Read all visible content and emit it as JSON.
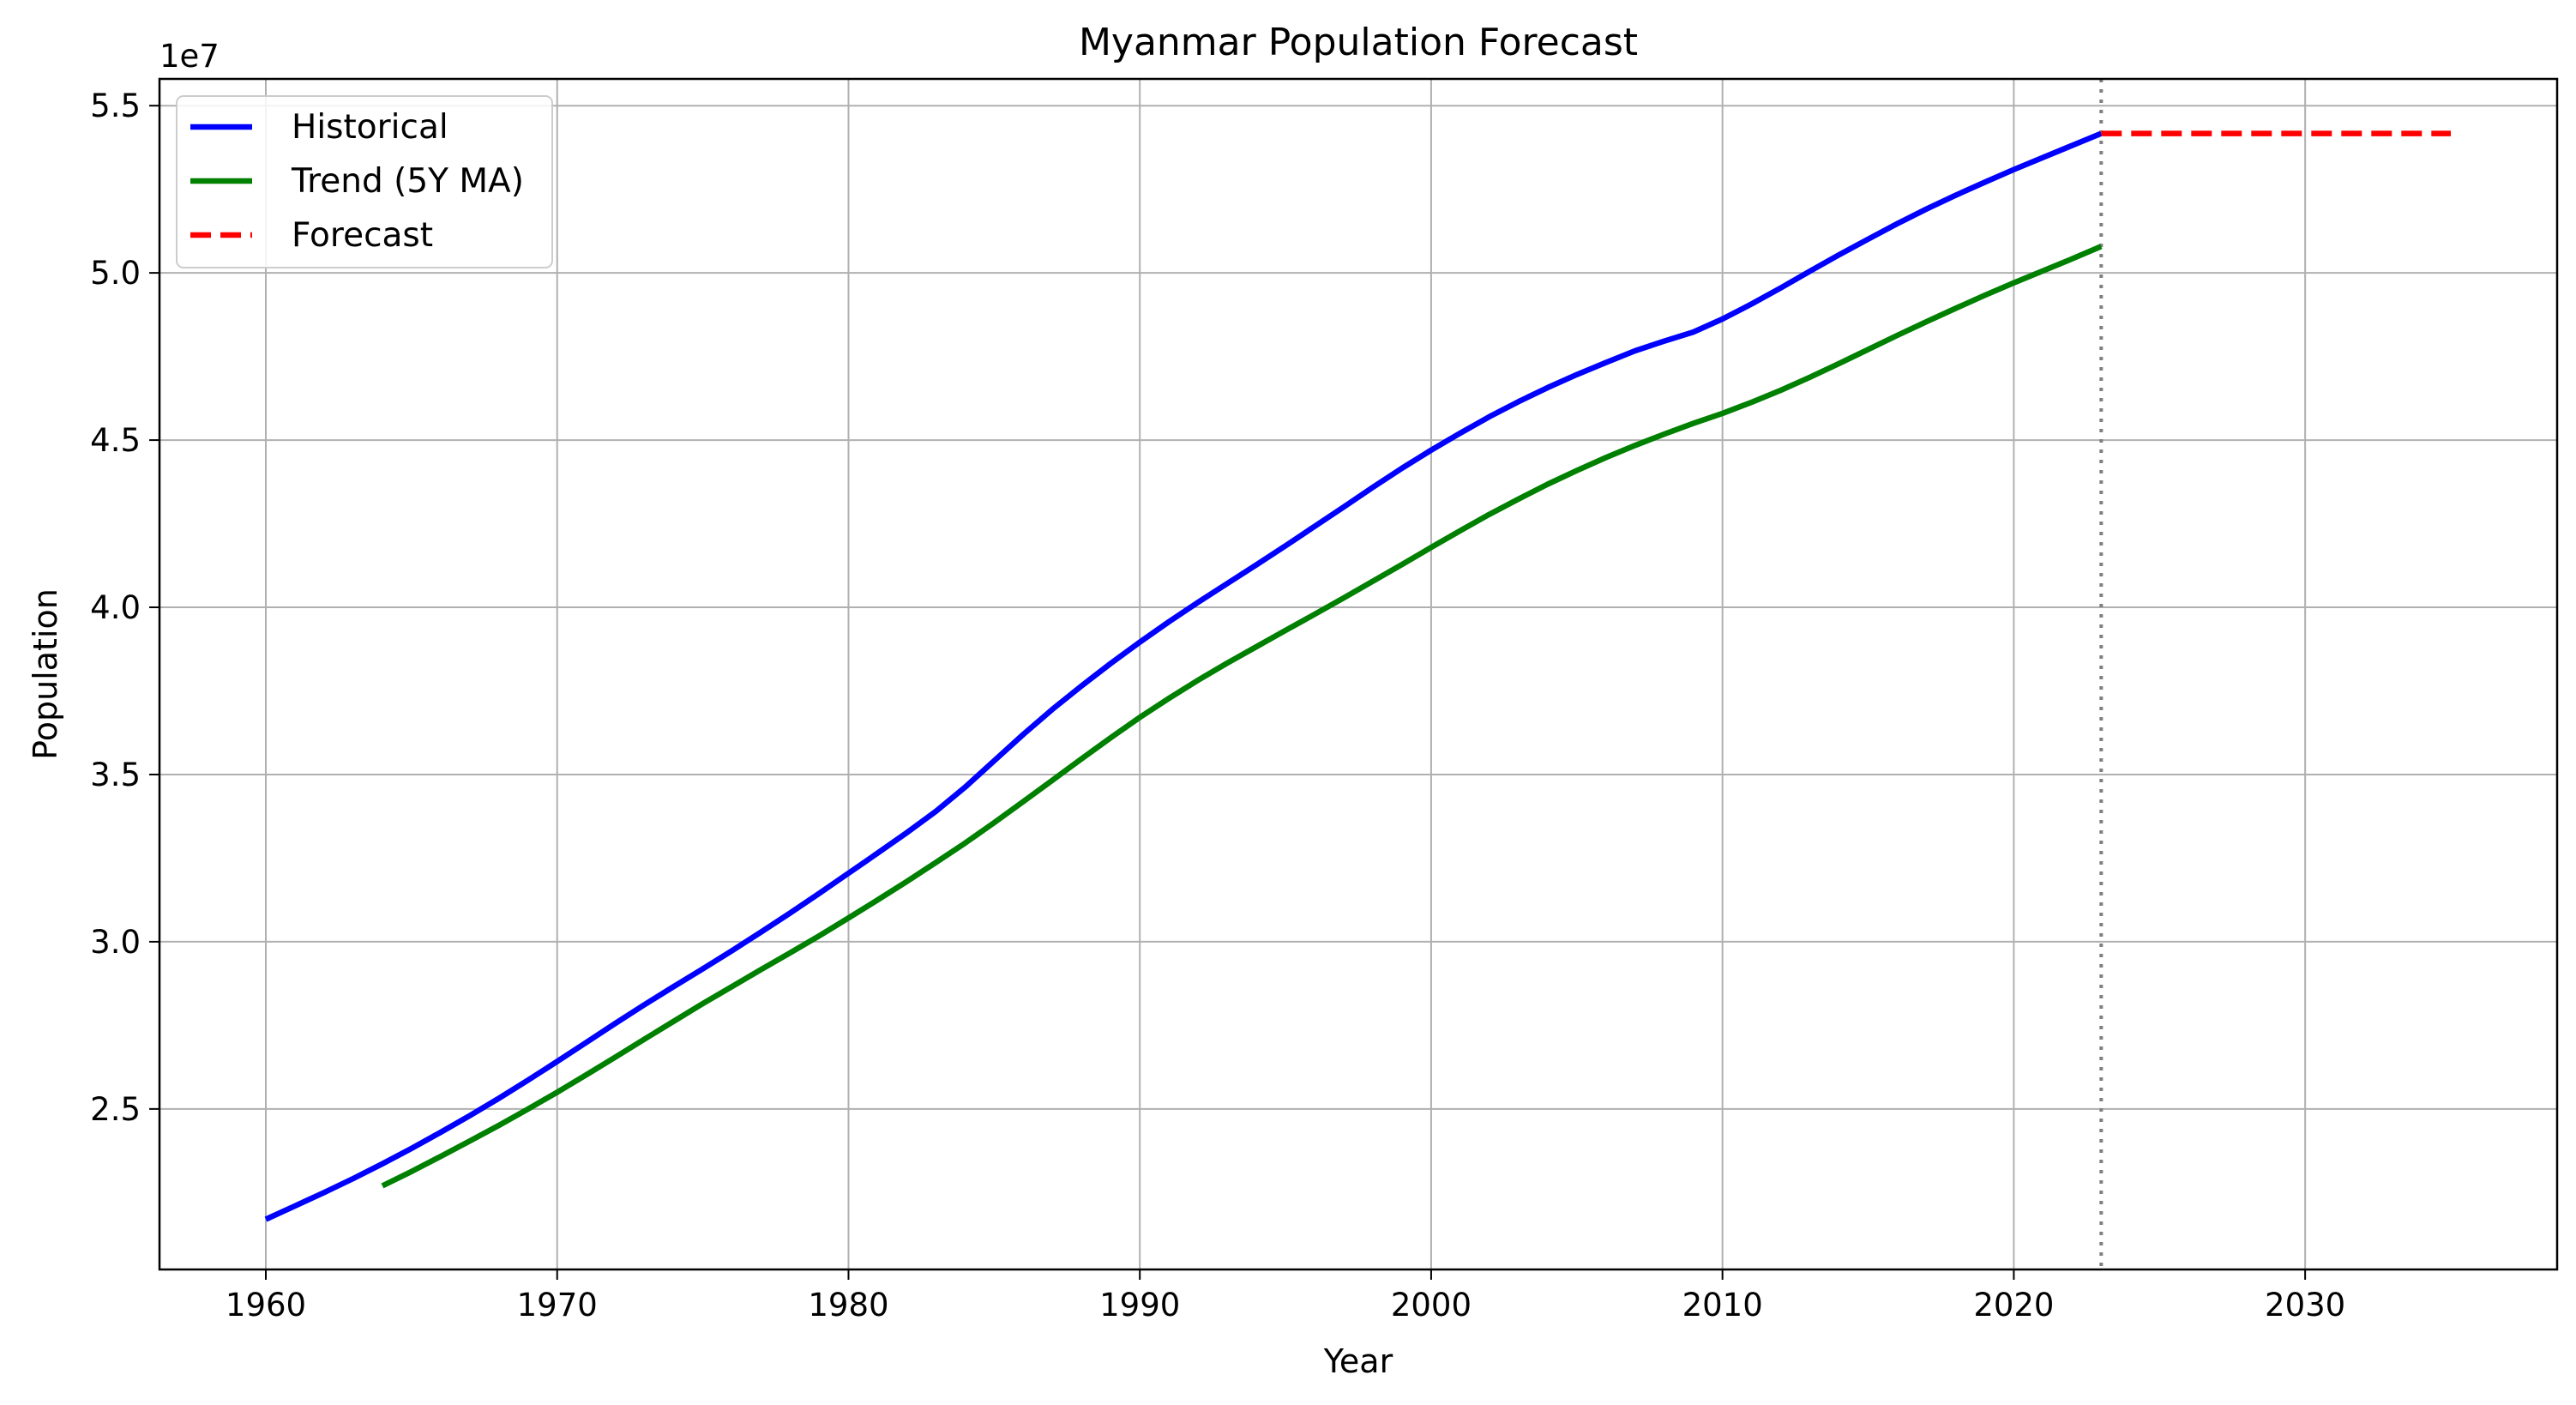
{
  "chart_data": {
    "type": "line",
    "title": "Myanmar Population Forecast",
    "xlabel": "Year",
    "ylabel": "Population",
    "y_offset_text": "1e7",
    "xlim": [
      1956.35,
      2038.65
    ],
    "ylim": [
      20200000.0,
      55800000.0
    ],
    "x_ticks": [
      1960,
      1970,
      1980,
      1990,
      2000,
      2010,
      2020,
      2030
    ],
    "x_tick_labels": [
      "1960",
      "1970",
      "1980",
      "1990",
      "2000",
      "2010",
      "2020",
      "2030"
    ],
    "y_ticks": [
      25000000.0,
      30000000.0,
      35000000.0,
      40000000.0,
      45000000.0,
      50000000.0,
      55000000.0
    ],
    "y_tick_labels": [
      "2.5",
      "3.0",
      "3.5",
      "4.0",
      "4.5",
      "5.0",
      "5.5"
    ],
    "grid": true,
    "legend_position": "top-left",
    "forecast_start_year": 2023,
    "series": [
      {
        "name": "Historical",
        "color": "#0000ff",
        "style": "solid",
        "x": [
          1960,
          1961,
          1962,
          1963,
          1964,
          1965,
          1966,
          1967,
          1968,
          1969,
          1970,
          1971,
          1972,
          1973,
          1974,
          1975,
          1976,
          1977,
          1978,
          1979,
          1980,
          1981,
          1982,
          1983,
          1984,
          1985,
          1986,
          1987,
          1988,
          1989,
          1990,
          1991,
          1992,
          1993,
          1994,
          1995,
          1996,
          1997,
          1998,
          1999,
          2000,
          2001,
          2002,
          2003,
          2004,
          2005,
          2006,
          2007,
          2008,
          2009,
          2010,
          2011,
          2012,
          2013,
          2014,
          2015,
          2016,
          2017,
          2018,
          2019,
          2020,
          2021,
          2022,
          2023
        ],
        "y": [
          21700000,
          22100000,
          22500000,
          22920000,
          23360000,
          23820000,
          24300000,
          24800000,
          25320000,
          25860000,
          26420000,
          26990000,
          27560000,
          28120000,
          28660000,
          29190000,
          29730000,
          30290000,
          30860000,
          31450000,
          32050000,
          32650000,
          33260000,
          33900000,
          34620000,
          35410000,
          36200000,
          36950000,
          37650000,
          38320000,
          38960000,
          39570000,
          40150000,
          40710000,
          41270000,
          41840000,
          42420000,
          43000000,
          43590000,
          44160000,
          44700000,
          45210000,
          45700000,
          46150000,
          46570000,
          46960000,
          47320000,
          47670000,
          47960000,
          48230000,
          48620000,
          49070000,
          49550000,
          50050000,
          50540000,
          51010000,
          51470000,
          51910000,
          52320000,
          52710000,
          53090000,
          53450000,
          53810000,
          54170000
        ]
      },
      {
        "name": "Trend (5Y MA)",
        "color": "#008000",
        "style": "solid",
        "x": [
          1964,
          1965,
          1966,
          1967,
          1968,
          1969,
          1970,
          1971,
          1972,
          1973,
          1974,
          1975,
          1976,
          1977,
          1978,
          1979,
          1980,
          1981,
          1982,
          1983,
          1984,
          1985,
          1986,
          1987,
          1988,
          1989,
          1990,
          1991,
          1992,
          1993,
          1994,
          1995,
          1996,
          1997,
          1998,
          1999,
          2000,
          2001,
          2002,
          2003,
          2004,
          2005,
          2006,
          2007,
          2008,
          2009,
          2010,
          2011,
          2012,
          2013,
          2014,
          2015,
          2016,
          2017,
          2018,
          2019,
          2020,
          2021,
          2022,
          2023
        ],
        "y": [
          22700000,
          23130000,
          23580000,
          24040000,
          24510000,
          25000000,
          25500000,
          26020000,
          26550000,
          27090000,
          27620000,
          28150000,
          28660000,
          29170000,
          29670000,
          30180000,
          30710000,
          31250000,
          31800000,
          32370000,
          32950000,
          33560000,
          34190000,
          34830000,
          35470000,
          36100000,
          36710000,
          37280000,
          37820000,
          38330000,
          38820000,
          39310000,
          39790000,
          40280000,
          40780000,
          41280000,
          41790000,
          42290000,
          42780000,
          43240000,
          43680000,
          44090000,
          44480000,
          44840000,
          45180000,
          45500000,
          45800000,
          46130000,
          46490000,
          46880000,
          47290000,
          47710000,
          48130000,
          48540000,
          48940000,
          49330000,
          49700000,
          50060000,
          50420000,
          50790000
        ]
      },
      {
        "name": "Forecast",
        "color": "#ff0000",
        "style": "dashed",
        "x": [
          2023,
          2024,
          2025,
          2026,
          2027,
          2028,
          2029,
          2030,
          2031,
          2032,
          2033,
          2034,
          2035
        ],
        "y": [
          54170000,
          54170000,
          54170000,
          54170000,
          54170000,
          54170000,
          54170000,
          54170000,
          54170000,
          54170000,
          54170000,
          54170000,
          54170000
        ]
      }
    ]
  }
}
